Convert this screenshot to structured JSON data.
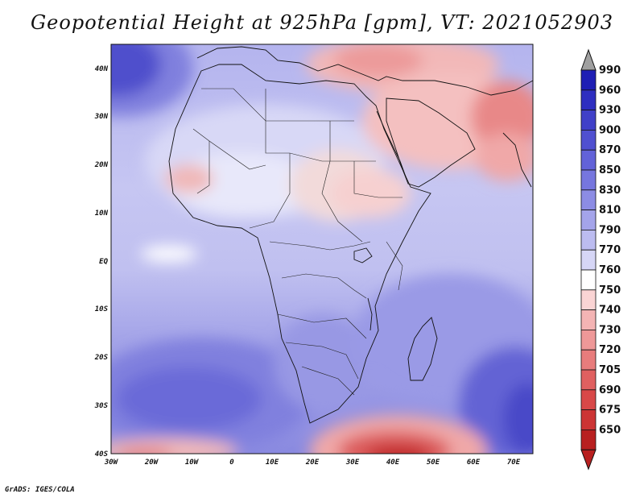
{
  "title": "Geopotential Height at 925hPa [gpm], VT: 2021052903",
  "credit": "GrADS: IGES/COLA",
  "lat_labels": [
    "40N",
    "30N",
    "20N",
    "10N",
    "EQ",
    "10S",
    "20S",
    "30S",
    "40S"
  ],
  "lon_labels": [
    "30W",
    "20W",
    "10W",
    "0",
    "10E",
    "20E",
    "30E",
    "40E",
    "50E",
    "60E",
    "70E"
  ],
  "colorbar": {
    "levels": [
      "990",
      "960",
      "930",
      "900",
      "870",
      "850",
      "830",
      "810",
      "790",
      "770",
      "760",
      "750",
      "740",
      "730",
      "720",
      "705",
      "690",
      "675",
      "650"
    ],
    "colors": [
      "#1e1eb4",
      "#2e2ec0",
      "#4040c8",
      "#5050d0",
      "#6262d8",
      "#7676de",
      "#8c8ce4",
      "#a4a4ea",
      "#bcbcf0",
      "#d6d6f6",
      "#ffffff",
      "#fad4d4",
      "#f4b4b4",
      "#ee9898",
      "#e87c7c",
      "#e06060",
      "#d84848",
      "#cc3434",
      "#b82020"
    ]
  },
  "colors": {
    "blue_dark": "#5050cc",
    "blue_mid": "#8080de",
    "blue_light": "#b4b4ee",
    "blue_pale": "#d6d6f6",
    "red_light": "#f4c4c4",
    "red_mid": "#e88888",
    "red_dark": "#c83030"
  }
}
